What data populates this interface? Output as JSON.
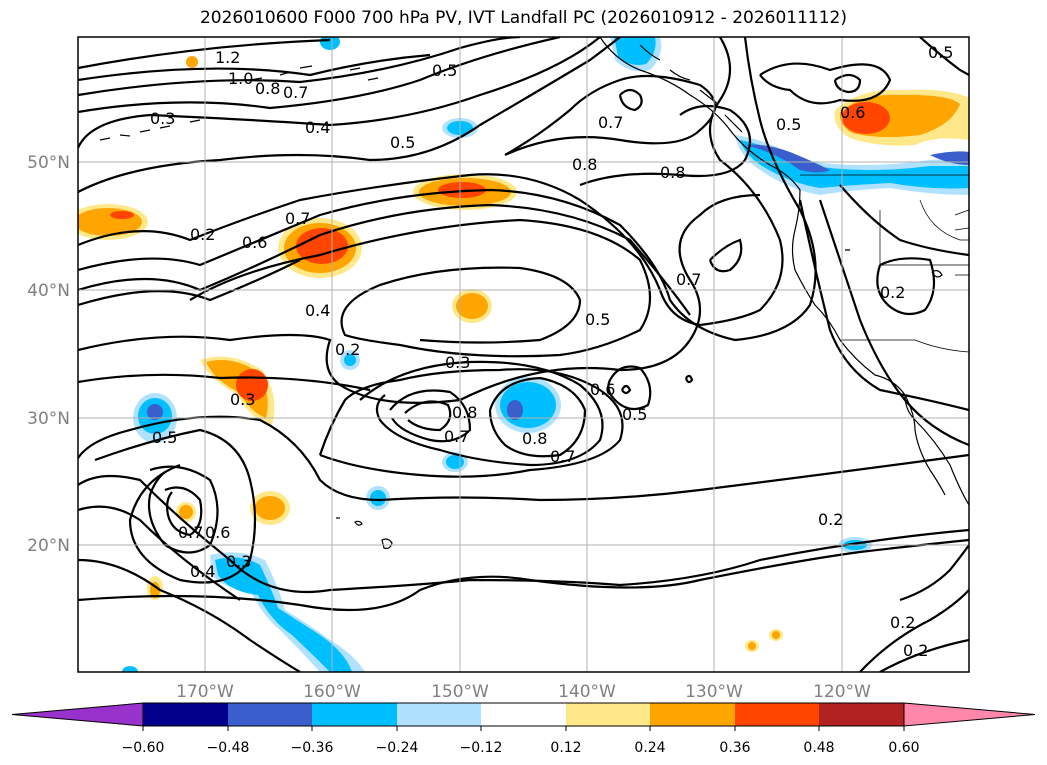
{
  "title": "2026010600 F000 700 hPa PV, IVT Landfall PC (2026010912 - 2026011112)",
  "map": {
    "lon_labels": [
      "170°W",
      "160°W",
      "150°W",
      "140°W",
      "130°W",
      "120°W"
    ],
    "lat_labels": [
      "50°N",
      "40°N",
      "30°N",
      "20°N"
    ],
    "contour_labels": [
      "1.2",
      "1.0",
      "0.8",
      "0.7",
      "0.3",
      "0.4",
      "0.5",
      "0.5",
      "0.7",
      "0.8",
      "0.8",
      "0.5",
      "0.6",
      "0.2",
      "0.6",
      "0.7",
      "0.4",
      "0.2",
      "0.3",
      "0.5",
      "0.7",
      "0.6",
      "0.5",
      "0.8",
      "0.7",
      "0.8",
      "0.7",
      "0.3",
      "0.5",
      "0.7",
      "0.6",
      "0.4",
      "0.3",
      "0.2",
      "0.2",
      "0.2",
      "0.2",
      "0.5"
    ]
  },
  "colorbar": {
    "ticks": [
      "−0.60",
      "−0.48",
      "−0.36",
      "−0.24",
      "−0.12",
      "0.12",
      "0.24",
      "0.36",
      "0.48",
      "0.60"
    ],
    "colors": [
      "#9932cc",
      "#00008b",
      "#3a5fcd",
      "#00bfff",
      "#b0e2ff",
      "#ffffff",
      "#ffe88a",
      "#ffa500",
      "#ff4500",
      "#b22222",
      "#ff88aa"
    ]
  }
}
